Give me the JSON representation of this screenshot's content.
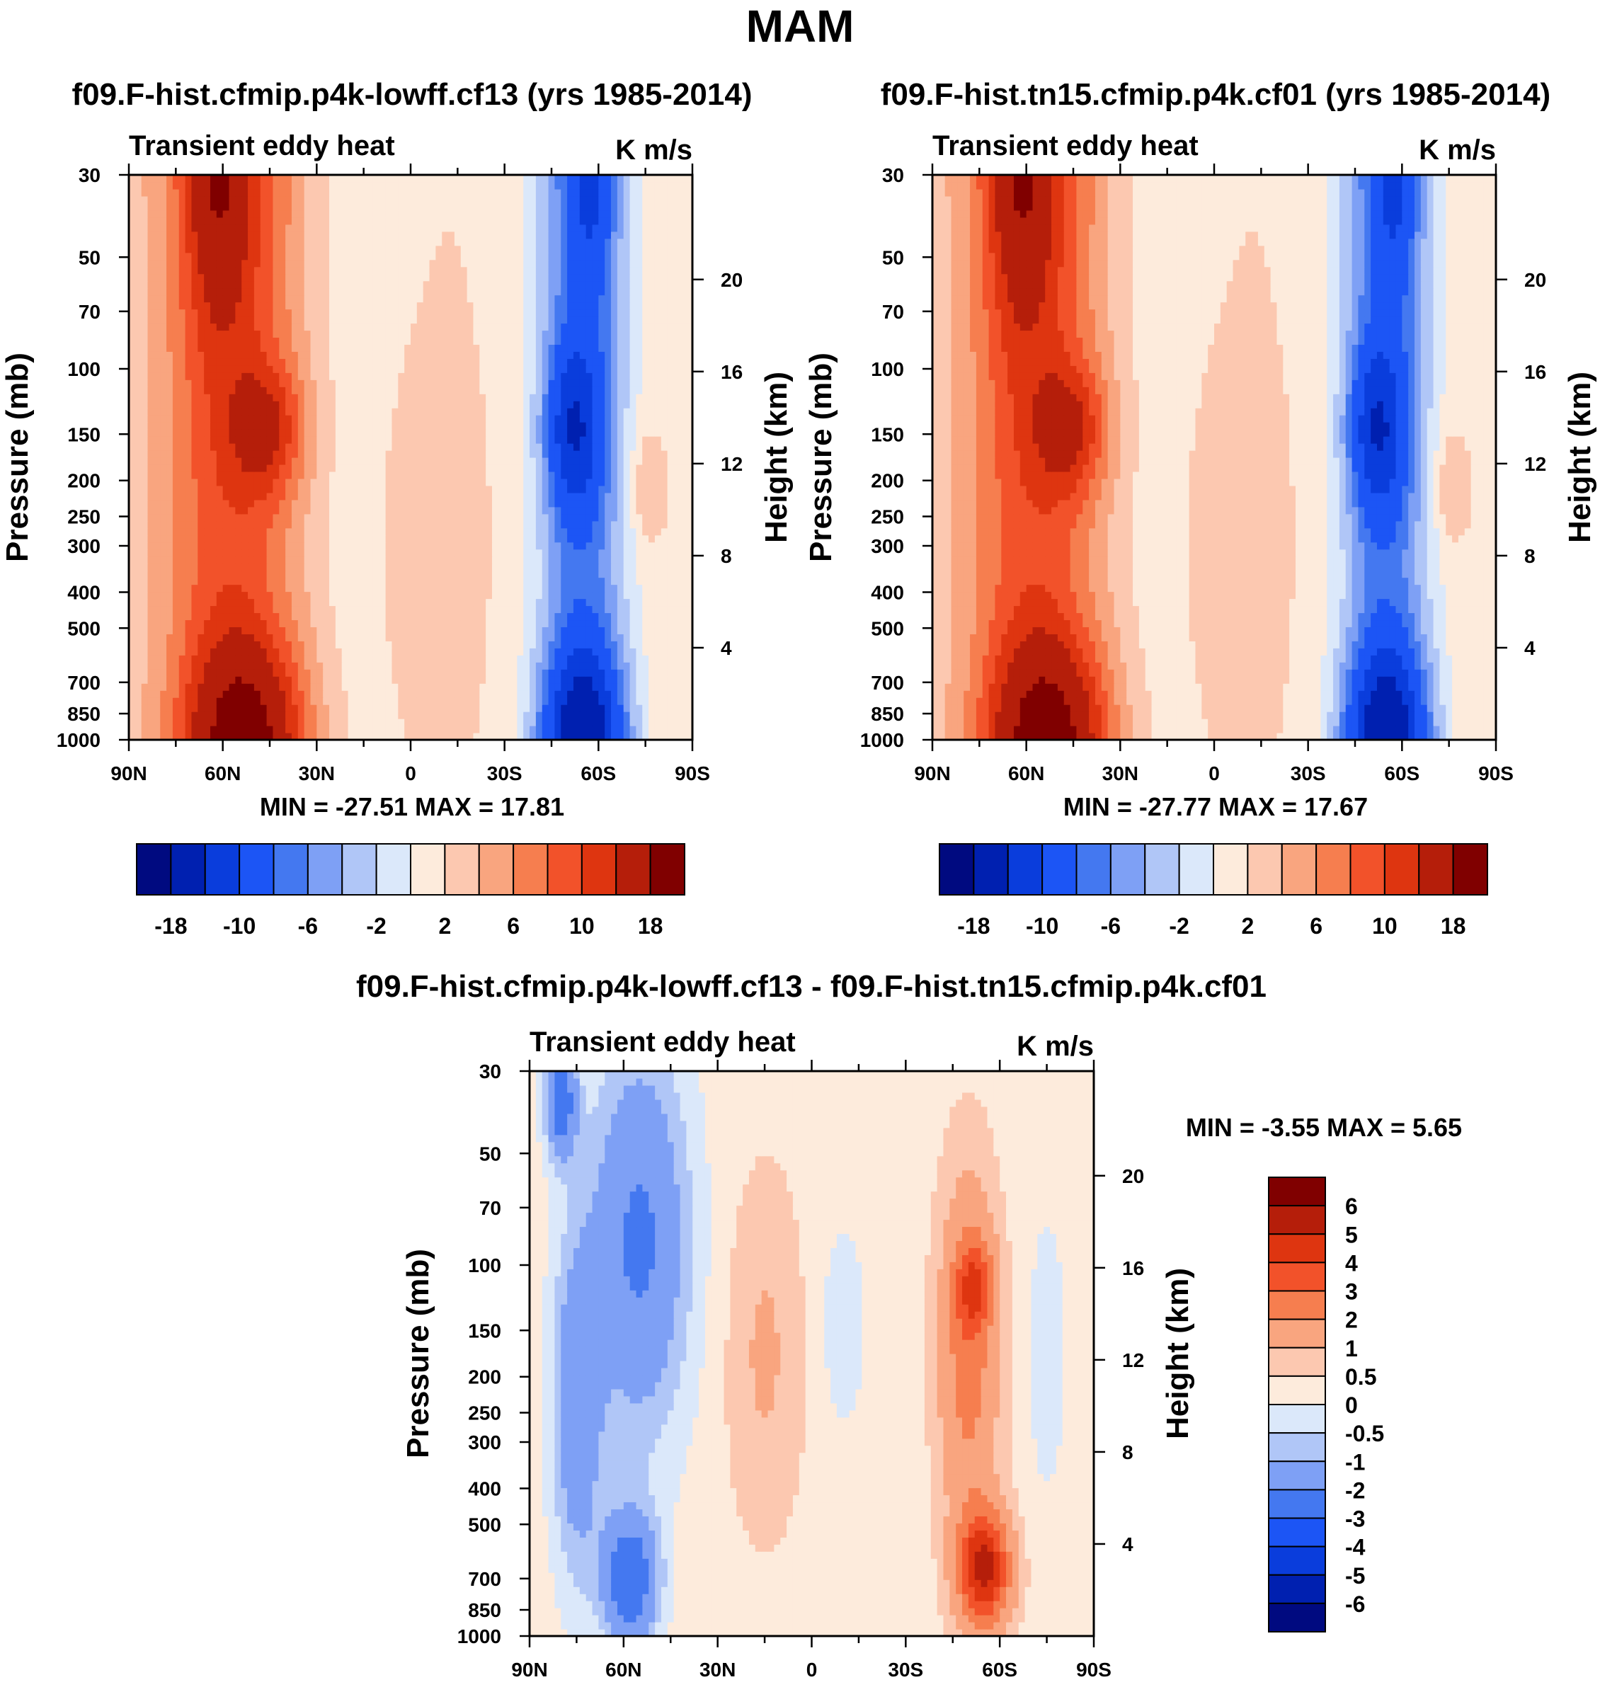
{
  "page": {
    "title": "MAM"
  },
  "chart_data": [
    {
      "type": "heatmap",
      "title": "f09.F-hist.cfmip.p4k-lowff.cf13 (yrs 1985-2014)",
      "left_string": "Transient eddy heat",
      "right_string": "K m/s",
      "xlabel": "",
      "ylabel": "Pressure (mb)",
      "ylabel_right": "Height (km)",
      "x_ticks": [
        "90N",
        "60N",
        "30N",
        "0",
        "30S",
        "60S",
        "90S"
      ],
      "x_range": [
        90,
        -90
      ],
      "y_ticks": [
        "30",
        "50",
        "70",
        "100",
        "150",
        "200",
        "250",
        "300",
        "400",
        "500",
        "700",
        "850",
        "1000"
      ],
      "y_range": [
        1000,
        30
      ],
      "y_scale": "log",
      "y_right_ticks": [
        "20",
        "16",
        "12",
        "8",
        "4"
      ],
      "stats": {
        "min": -27.51,
        "max": 17.81,
        "text": "MIN = -27.51  MAX =  17.81"
      },
      "colorbar_ticks": [
        "-18",
        "-10",
        "-6",
        "-2",
        "2",
        "6",
        "10",
        "18"
      ],
      "features": [
        {
          "lat": 60,
          "p": 30,
          "value": 12
        },
        {
          "lat": 45,
          "p": 170,
          "value": 10
        },
        {
          "lat": 50,
          "p": 900,
          "value": 17.8
        },
        {
          "lat": -58,
          "p": 30,
          "value": -14
        },
        {
          "lat": -52,
          "p": 170,
          "value": -22
        },
        {
          "lat": -55,
          "p": 850,
          "value": -27.5
        },
        {
          "lat": -73,
          "p": 230,
          "value": 2
        }
      ]
    },
    {
      "type": "heatmap",
      "title": "f09.F-hist.tn15.cfmip.p4k.cf01 (yrs 1985-2014)",
      "left_string": "Transient eddy heat",
      "right_string": "K m/s",
      "xlabel": "",
      "ylabel": "Pressure (mb)",
      "ylabel_right": "Height (km)",
      "x_ticks": [
        "90N",
        "60N",
        "30N",
        "0",
        "30S",
        "60S",
        "90S"
      ],
      "x_range": [
        90,
        -90
      ],
      "y_ticks": [
        "30",
        "50",
        "70",
        "100",
        "150",
        "200",
        "250",
        "300",
        "400",
        "500",
        "700",
        "850",
        "1000"
      ],
      "y_range": [
        1000,
        30
      ],
      "y_scale": "log",
      "y_right_ticks": [
        "20",
        "16",
        "12",
        "8",
        "4"
      ],
      "stats": {
        "min": -27.77,
        "max": 17.67,
        "text": "MIN = -27.77  MAX =  17.67"
      },
      "colorbar_ticks": [
        "-18",
        "-10",
        "-6",
        "-2",
        "2",
        "6",
        "10",
        "18"
      ],
      "features": [
        {
          "lat": 60,
          "p": 30,
          "value": 12
        },
        {
          "lat": 45,
          "p": 150,
          "value": 12
        },
        {
          "lat": 50,
          "p": 870,
          "value": 17.7
        },
        {
          "lat": -58,
          "p": 30,
          "value": -14
        },
        {
          "lat": -52,
          "p": 170,
          "value": -22
        },
        {
          "lat": -55,
          "p": 850,
          "value": -27.8
        },
        {
          "lat": -73,
          "p": 230,
          "value": 2
        }
      ]
    },
    {
      "type": "heatmap",
      "title": "f09.F-hist.cfmip.p4k-lowff.cf13 - f09.F-hist.tn15.cfmip.p4k.cf01",
      "left_string": "Transient eddy heat",
      "right_string": "K m/s",
      "xlabel": "",
      "ylabel": "Pressure (mb)",
      "ylabel_right": "Height (km)",
      "x_ticks": [
        "90N",
        "60N",
        "30N",
        "0",
        "30S",
        "60S",
        "90S"
      ],
      "x_range": [
        90,
        -90
      ],
      "y_ticks": [
        "30",
        "50",
        "70",
        "100",
        "150",
        "200",
        "250",
        "300",
        "400",
        "500",
        "700",
        "850",
        "1000"
      ],
      "y_range": [
        1000,
        30
      ],
      "y_scale": "log",
      "y_right_ticks": [
        "20",
        "16",
        "12",
        "8",
        "4"
      ],
      "stats": {
        "min": -3.55,
        "max": 5.65,
        "text": "MIN =  -3.55  MAX =   5.65"
      },
      "colorbar_ticks": [
        "6",
        "5",
        "4",
        "3",
        "2",
        "1",
        "0.5",
        "0",
        "-0.5",
        "-1",
        "-2",
        "-3",
        "-4",
        "-5",
        "-6"
      ],
      "features": [
        {
          "lat": 80,
          "p": 35,
          "value": -3
        },
        {
          "lat": 48,
          "p": 110,
          "value": -2
        },
        {
          "lat": 58,
          "p": 750,
          "value": -3.5
        },
        {
          "lat": -52,
          "p": 140,
          "value": 2.5
        },
        {
          "lat": -55,
          "p": 770,
          "value": 5.6
        },
        {
          "lat": 15,
          "p": 150,
          "value": 0.8
        }
      ]
    }
  ],
  "colors": {
    "main_palette": [
      "#000a80",
      "#0020b0",
      "#0a3ddc",
      "#1c55f5",
      "#4478f0",
      "#7ea0f5",
      "#b0c6f7",
      "#dbe8fa",
      "#fdebdc",
      "#fcc8b0",
      "#f9a57f",
      "#f67e4f",
      "#f2522a",
      "#de3510",
      "#b51e0a",
      "#800000"
    ],
    "diff_palette": [
      "#000a80",
      "#0020b0",
      "#0a3ddc",
      "#1c55f5",
      "#4478f0",
      "#7ea0f5",
      "#b0c6f7",
      "#dbe8fa",
      "#fdebdc",
      "#fcc8b0",
      "#f9a57f",
      "#f67e4f",
      "#f2522a",
      "#de3510",
      "#b51e0a",
      "#800000"
    ]
  }
}
